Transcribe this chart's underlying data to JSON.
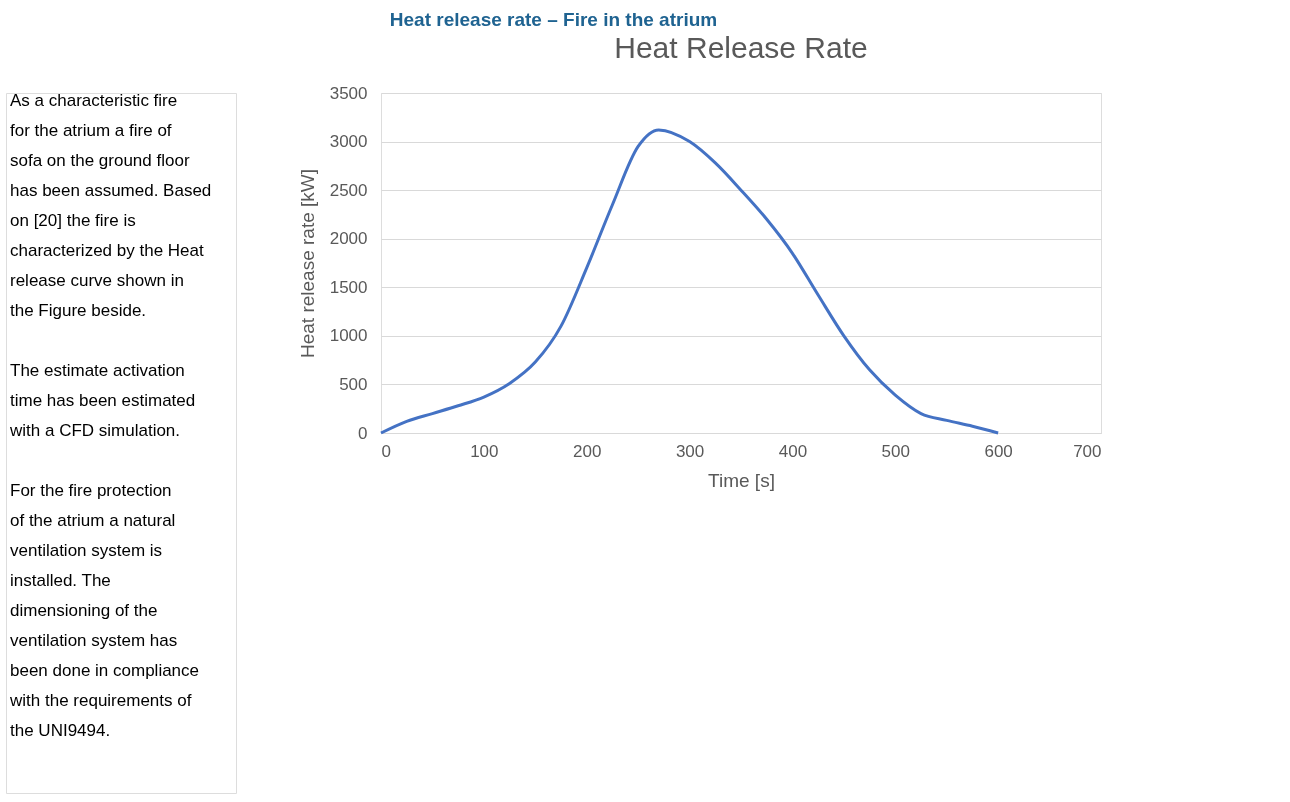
{
  "chart_data": {
    "type": "line",
    "title": "Heat release rate – Fire in the atrium",
    "subtitle": "Heat Release Rate",
    "xlabel": "Time [s]",
    "ylabel": "Heat release rate [kW]",
    "annotations": [
      "As a characteristic fire for the atrium a fire of sofa on the ground floor has been assumed. Based on [20] the fire is characterized by the Heat release curve shown in the Figure beside.",
      "The estimate activation time has been estimated with a CFD simulation.",
      "For the fire protection of the atrium a natural ventilation system is installed. The dimensioning of the ventilation system has been done in compliance with the requirements of the UNI9494."
    ],
    "x": [
      0,
      25,
      50,
      75,
      100,
      125,
      150,
      175,
      200,
      225,
      250,
      270,
      300,
      325,
      350,
      375,
      400,
      425,
      450,
      475,
      500,
      525,
      550,
      575,
      600
    ],
    "series": [
      {
        "color": "#4472c4",
        "values": [
          0,
          120,
          200,
          280,
          370,
          510,
          730,
          1100,
          1700,
          2350,
          2950,
          3120,
          3000,
          2780,
          2500,
          2200,
          1850,
          1420,
          1000,
          650,
          390,
          200,
          130,
          70,
          0
        ]
      }
    ],
    "xlim": [
      0,
      700
    ],
    "xticks": [
      0,
      100,
      200,
      300,
      400,
      500,
      600,
      700
    ],
    "ylim": [
      0,
      3500
    ],
    "yticks": [
      0,
      500,
      1000,
      1500,
      2000,
      2500,
      3000,
      3500
    ],
    "grid": "y",
    "marker": "none",
    "line_style": "solid"
  }
}
